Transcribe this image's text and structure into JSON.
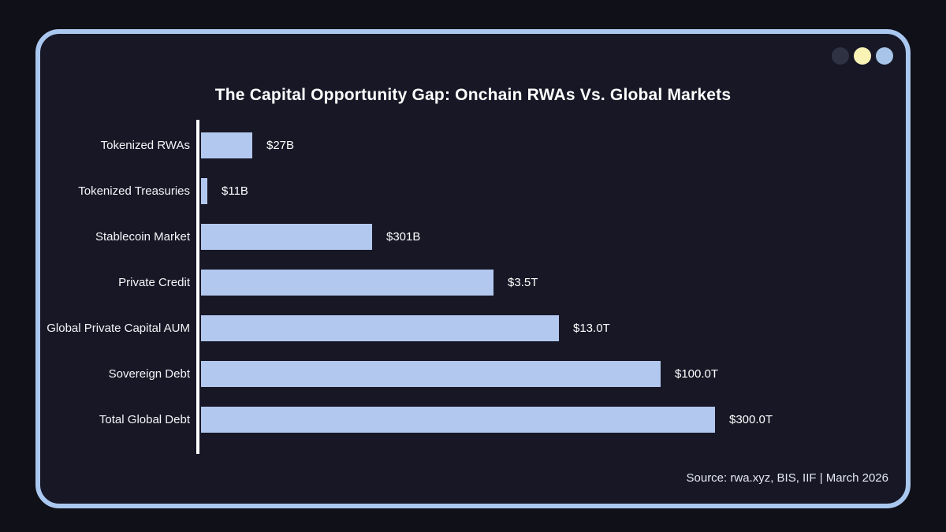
{
  "window": {
    "controls": [
      {
        "name": "dot-dark",
        "color": "#2e3242"
      },
      {
        "name": "dot-yellow",
        "color": "#f9f3b5"
      },
      {
        "name": "dot-blue",
        "color": "#a7c5e8"
      }
    ],
    "frame_border_color": "#aac8ef",
    "background_color": "#171726"
  },
  "chart_data": {
    "type": "bar",
    "orientation": "horizontal",
    "scale": "log10",
    "title": "The Capital Opportunity Gap: Onchain RWAs Vs. Global Markets",
    "categories": [
      "Tokenized RWAs",
      "Tokenized Treasuries",
      "Stablecoin Market",
      "Private Credit",
      "Global Private Capital AUM",
      "Sovereign Debt",
      "Total Global Debt"
    ],
    "values_usd_billions": [
      27,
      11,
      301,
      3500,
      13000,
      100000,
      300000
    ],
    "value_labels": [
      "$27B",
      "$11B",
      "$301B",
      "$3.5T",
      "$13.0T",
      "$100.0T",
      "$300.0T"
    ],
    "bar_color": "#b3c8ee",
    "axis_line_color": "#ffffff",
    "legend": "none",
    "grid": "off",
    "source": "Source: rwa.xyz, BIS, IIF | March 2026"
  }
}
